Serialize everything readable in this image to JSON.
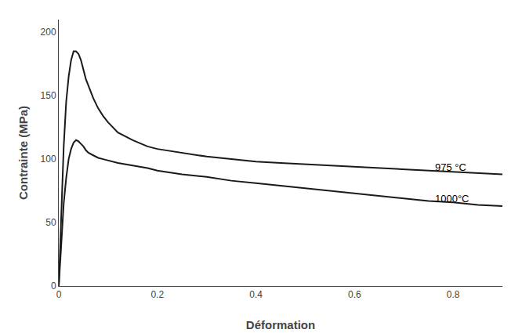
{
  "chart_data": {
    "type": "line",
    "xlabel": "Déformation",
    "ylabel": "Contrainte (MPa)",
    "x": [
      0.0,
      0.005,
      0.01,
      0.015,
      0.02,
      0.025,
      0.03,
      0.035,
      0.04,
      0.045,
      0.05,
      0.055,
      0.06,
      0.07,
      0.08,
      0.09,
      0.1,
      0.12,
      0.15,
      0.18,
      0.2,
      0.25,
      0.3,
      0.35,
      0.4,
      0.45,
      0.5,
      0.55,
      0.6,
      0.65,
      0.7,
      0.75,
      0.8,
      0.85,
      0.9
    ],
    "series": [
      {
        "color": "#1a1a1a",
        "values": [
          0,
          60,
          110,
          145,
          165,
          178,
          185,
          185,
          183,
          178,
          170,
          163,
          158,
          148,
          140,
          134,
          129,
          121,
          115,
          110,
          108,
          105,
          102,
          100,
          98,
          97,
          96,
          95,
          94,
          93,
          92,
          91,
          90,
          89,
          88
        ]
      },
      {
        "color": "#1a1a1a",
        "values": [
          0,
          35,
          65,
          85,
          100,
          108,
          113,
          115,
          114,
          112,
          110,
          107,
          105,
          103,
          101,
          100,
          99,
          97,
          95,
          93,
          91,
          88,
          86,
          83,
          81,
          79,
          77,
          75,
          73,
          71,
          69,
          67,
          66,
          64,
          63
        ]
      }
    ],
    "annotations": [
      {
        "text": "975 °C",
        "x": 0.76,
        "y": 88
      },
      {
        "text": "1000°C",
        "x": 0.76,
        "y": 63
      }
    ],
    "xlim": [
      0,
      0.9
    ],
    "ylim": [
      0,
      210
    ],
    "xticks": [
      0,
      0.2,
      0.4,
      0.6,
      0.8
    ],
    "yticks": [
      0,
      50,
      100,
      150,
      200
    ],
    "grid": false
  }
}
